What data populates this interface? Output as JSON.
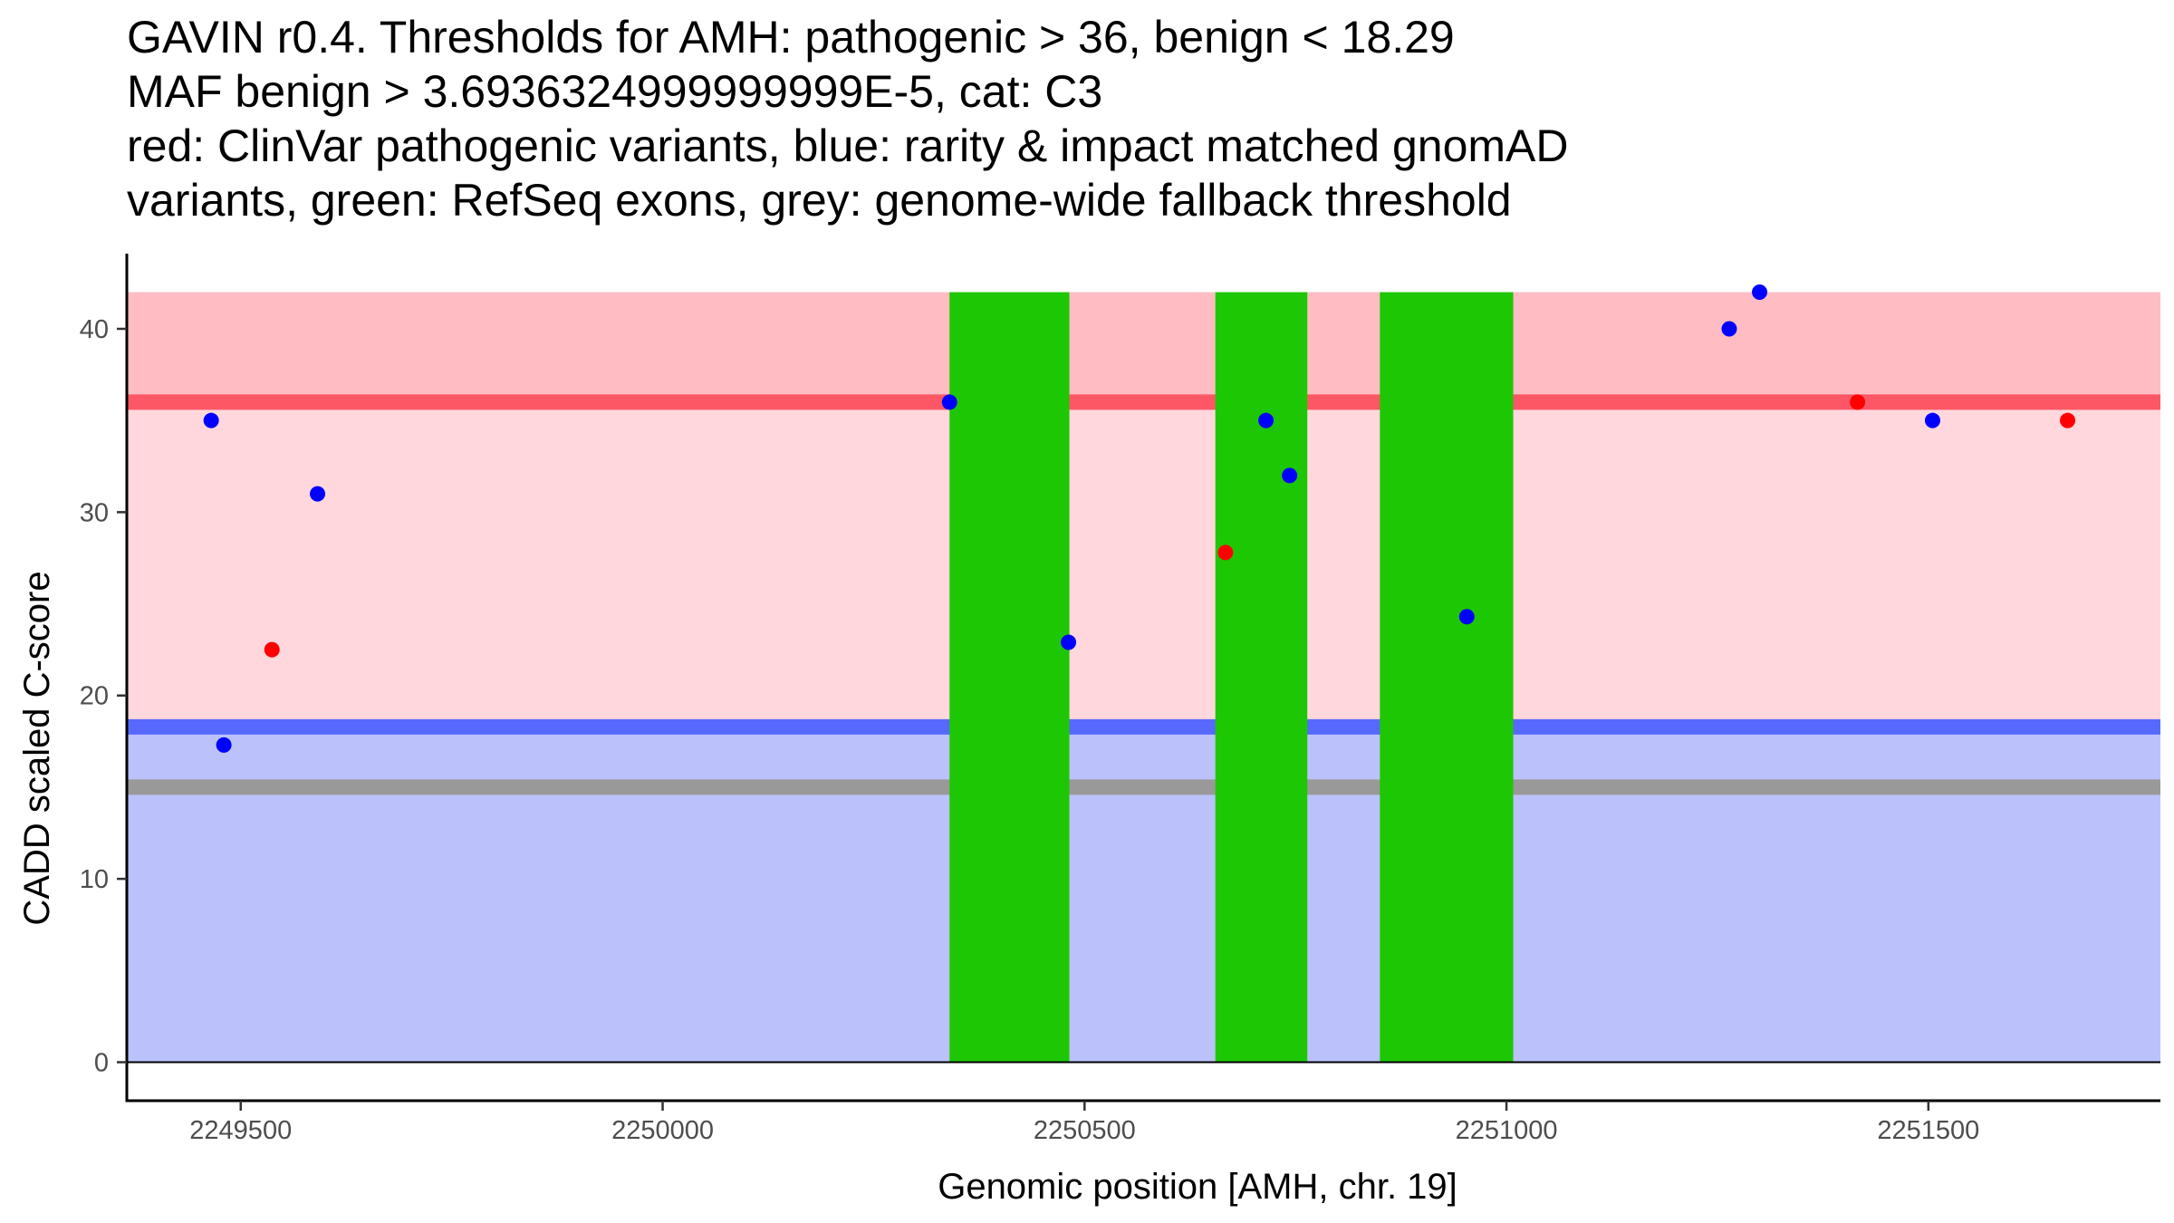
{
  "chart_data": {
    "type": "scatter",
    "title_lines": [
      "GAVIN r0.4. Thresholds for AMH: pathogenic > 36, benign < 18.29",
      "MAF benign > 3.6936324999999999E-5, cat: C3",
      "red: ClinVar pathogenic variants, blue: rarity & impact matched gnomAD",
      "variants, green: RefSeq exons, grey: genome-wide fallback threshold"
    ],
    "xlabel": "Genomic position [AMH, chr. 19]",
    "ylabel": "CADD scaled C-score",
    "xlim": [
      2249365,
      2251775
    ],
    "ylim": [
      -2.1,
      44.1
    ],
    "x_ticks": [
      2249500,
      2250000,
      2250500,
      2251000,
      2251500
    ],
    "y_ticks": [
      0,
      10,
      20,
      30,
      40
    ],
    "x_tick_labels": [
      "2249500",
      "2250000",
      "2250500",
      "2251000",
      "2251500"
    ],
    "y_tick_labels": [
      "0",
      "10",
      "20",
      "30",
      "40"
    ],
    "regions": {
      "pathogenic": {
        "from": 36,
        "to": 42,
        "color": "#ffbcc3"
      },
      "uncertain": {
        "from": 18.29,
        "to": 36,
        "color": "#ffd7dc"
      },
      "benign": {
        "from": 0,
        "to": 18.29,
        "color": "#bbc2fb"
      }
    },
    "threshold_lines": [
      {
        "name": "pathogenic threshold",
        "y": 36,
        "color": "#fd5766"
      },
      {
        "name": "benign threshold",
        "y": 18.29,
        "color": "#5769fd"
      },
      {
        "name": "genome-wide fallback threshold",
        "y": 15,
        "color": "#999999"
      }
    ],
    "exons": [
      {
        "start": 2250340,
        "end": 2250482
      },
      {
        "start": 2250655,
        "end": 2250764
      },
      {
        "start": 2250850,
        "end": 2251008
      }
    ],
    "exon_color": "#1ec703",
    "exon_y_range": [
      0,
      42
    ],
    "series": [
      {
        "name": "ClinVar pathogenic variants",
        "color": "#ff0000",
        "points": [
          {
            "x": 2249537,
            "y": 22.5
          },
          {
            "x": 2250667,
            "y": 27.8
          },
          {
            "x": 2251416,
            "y": 36
          },
          {
            "x": 2251665,
            "y": 35
          }
        ]
      },
      {
        "name": "rarity & impact matched gnomAD variants",
        "color": "#0000ff",
        "points": [
          {
            "x": 2249465,
            "y": 35
          },
          {
            "x": 2249480,
            "y": 17.3
          },
          {
            "x": 2249591,
            "y": 31
          },
          {
            "x": 2250340,
            "y": 36
          },
          {
            "x": 2250481,
            "y": 22.9
          },
          {
            "x": 2250715,
            "y": 35
          },
          {
            "x": 2250743,
            "y": 32
          },
          {
            "x": 2250953,
            "y": 24.3
          },
          {
            "x": 2251264,
            "y": 40
          },
          {
            "x": 2251300,
            "y": 42
          },
          {
            "x": 2251505,
            "y": 35
          }
        ]
      }
    ]
  }
}
